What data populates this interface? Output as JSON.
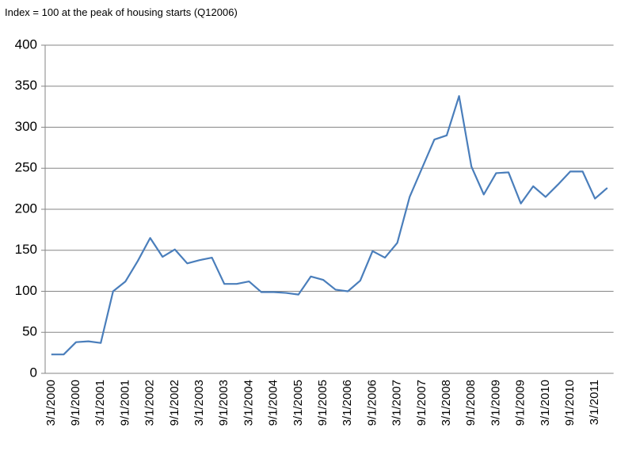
{
  "chart_data": {
    "type": "line",
    "subtitle": "Index = 100 at the peak of housing starts (Q12006)",
    "categories": [
      "3/1/2000",
      null,
      "9/1/2000",
      null,
      "3/1/2001",
      null,
      "9/1/2001",
      null,
      "3/1/2002",
      null,
      "9/1/2002",
      null,
      "3/1/2003",
      null,
      "9/1/2003",
      null,
      "3/1/2004",
      null,
      "9/1/2004",
      null,
      "3/1/2005",
      null,
      "9/1/2005",
      null,
      "3/1/2006",
      null,
      "9/1/2006",
      null,
      "3/1/2007",
      null,
      "9/1/2007",
      null,
      "3/1/2008",
      null,
      "9/1/2008",
      null,
      "3/1/2009",
      null,
      "9/1/2009",
      null,
      "3/1/2010",
      null,
      "9/1/2010",
      null,
      "3/1/2011",
      null
    ],
    "values": [
      23,
      23,
      38,
      39,
      37,
      100,
      112,
      137,
      165,
      142,
      151,
      134,
      138,
      141,
      109,
      109,
      112,
      99,
      99,
      98,
      96,
      118,
      114,
      102,
      100,
      113,
      149,
      141,
      159,
      215,
      250,
      285,
      290,
      338,
      252,
      218,
      244,
      245,
      207,
      228,
      215,
      230,
      246,
      246,
      213,
      226
    ],
    "color": "#4a7ebb",
    "ylim": [
      0,
      400
    ],
    "yticks": [
      0,
      50,
      100,
      150,
      200,
      250,
      300,
      350,
      400
    ],
    "grid": true
  }
}
